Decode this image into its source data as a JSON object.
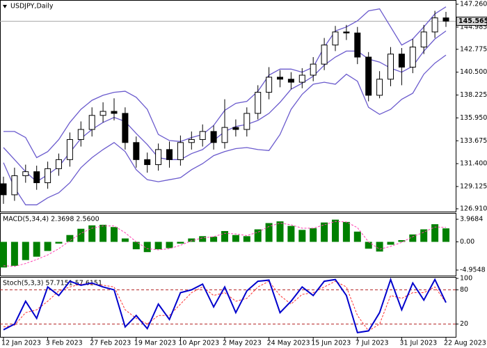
{
  "chart_data": [
    {
      "type": "candlestick",
      "title": "USDJPY,Daily",
      "open": [
        129.4,
        128.3,
        130.2,
        130.6,
        129.5,
        130.9,
        131.8,
        133.8,
        134.8,
        136.2,
        136.6,
        136.4,
        133.5,
        131.8,
        131.3,
        132.8,
        131.8,
        133.5,
        133.8,
        134.6,
        133.5,
        135.0,
        134.8,
        136.4,
        138.5,
        140.0,
        139.8,
        139.5,
        140.2,
        141.3,
        143.2,
        144.5,
        144.4,
        142.0,
        138.2,
        139.8,
        142.3,
        141.0,
        143.0,
        144.5,
        145.9
      ],
      "high": [
        130.1,
        131.0,
        131.3,
        131.2,
        131.6,
        132.4,
        134.5,
        135.6,
        137.0,
        137.5,
        137.9,
        137.0,
        134.1,
        132.5,
        133.4,
        133.6,
        134.2,
        134.6,
        135.3,
        135.2,
        137.8,
        135.8,
        137.0,
        139.2,
        141.0,
        140.7,
        140.5,
        140.9,
        142.0,
        143.9,
        145.1,
        145.2,
        145.0,
        142.5,
        140.6,
        143.0,
        142.9,
        143.8,
        145.2,
        146.6,
        146.5
      ],
      "low": [
        127.4,
        127.7,
        129.5,
        128.8,
        128.9,
        130.2,
        131.1,
        133.1,
        134.1,
        135.5,
        135.7,
        132.8,
        131.0,
        130.5,
        130.7,
        131.0,
        131.2,
        132.8,
        133.1,
        132.8,
        132.9,
        134.1,
        134.1,
        135.8,
        137.8,
        139.0,
        138.8,
        138.9,
        139.6,
        140.7,
        142.6,
        143.7,
        141.3,
        137.6,
        137.9,
        139.1,
        139.2,
        140.4,
        142.3,
        143.9,
        145.0
      ],
      "close": [
        128.3,
        130.2,
        130.6,
        129.5,
        130.9,
        131.8,
        133.8,
        134.8,
        136.2,
        136.6,
        136.4,
        133.5,
        131.8,
        131.3,
        132.8,
        131.8,
        133.5,
        133.8,
        134.6,
        133.5,
        135.0,
        134.8,
        136.4,
        138.5,
        140.0,
        139.8,
        139.5,
        140.2,
        141.3,
        143.2,
        144.5,
        144.4,
        142.0,
        138.2,
        139.8,
        142.3,
        141.0,
        143.0,
        144.5,
        145.9,
        145.57
      ],
      "color": "#000000",
      "bands": {
        "color": "#6a5acd",
        "upper": [
          134.6,
          134.6,
          134.0,
          132.0,
          132.6,
          133.8,
          135.5,
          136.8,
          137.7,
          138.2,
          138.5,
          138.6,
          138.0,
          136.8,
          134.3,
          133.7,
          133.6,
          134.0,
          134.3,
          135.2,
          136.7,
          137.4,
          137.6,
          138.6,
          140.2,
          140.8,
          140.8,
          140.5,
          141.0,
          143.0,
          144.6,
          145.0,
          145.6,
          146.6,
          146.8,
          145.0,
          143.2,
          143.8,
          145.0,
          146.3,
          147.0
        ],
        "middle": [
          133.0,
          131.8,
          130.6,
          129.6,
          130.3,
          131.1,
          132.5,
          133.9,
          134.8,
          135.5,
          136.0,
          135.6,
          134.4,
          133.3,
          132.0,
          131.8,
          131.8,
          132.4,
          132.8,
          133.7,
          134.6,
          135.1,
          135.3,
          135.7,
          136.4,
          137.5,
          138.8,
          139.4,
          140.1,
          141.2,
          142.0,
          142.6,
          142.6,
          141.8,
          141.5,
          140.9,
          140.5,
          141.1,
          142.6,
          143.8,
          144.6
        ],
        "lower": [
          131.5,
          129.0,
          127.3,
          127.3,
          128.0,
          128.5,
          129.5,
          131.0,
          132.0,
          132.8,
          133.5,
          132.6,
          130.8,
          129.8,
          129.6,
          129.8,
          130.0,
          130.8,
          131.4,
          132.2,
          132.6,
          132.9,
          133.0,
          132.8,
          132.7,
          134.3,
          136.8,
          138.3,
          139.3,
          139.5,
          139.3,
          140.3,
          139.6,
          137.0,
          136.3,
          136.8,
          137.8,
          138.4,
          140.3,
          141.4,
          142.2
        ]
      },
      "last_price": 145.565,
      "ylim": [
        126.7,
        147.54
      ],
      "yticks": [
        {
          "value": 147.26,
          "label": "147.260"
        },
        144.985,
        142.775,
        {
          "value": 140.5,
          "label": "140.500"
        },
        138.225,
        {
          "value": 135.95,
          "label": "135.950"
        },
        133.675,
        {
          "value": 131.4,
          "label": "131.400"
        },
        129.125,
        {
          "value": 126.91,
          "label": "126.910"
        }
      ]
    },
    {
      "type": "macd",
      "title": "MACD(5,34,4) 2.3698 2.5600",
      "color": "#008000",
      "values": [
        -4.5,
        -4.2,
        -3.2,
        -2.6,
        -1.6,
        -0.3,
        1.2,
        2.3,
        2.9,
        3.0,
        2.6,
        0.6,
        -1.3,
        -1.8,
        -1.3,
        -1.1,
        -0.3,
        0.6,
        1.0,
        0.9,
        1.9,
        1.2,
        1.0,
        2.2,
        3.3,
        3.6,
        2.8,
        2.1,
        2.4,
        3.4,
        3.9,
        3.5,
        1.8,
        -1.2,
        -1.7,
        -0.5,
        0.3,
        1.3,
        2.2,
        3.1,
        2.3698
      ],
      "signal": {
        "color": "#ff3fb0",
        "values": [
          -4.2,
          -4.3,
          -3.8,
          -3.1,
          -2.3,
          -1.2,
          0.2,
          1.5,
          2.4,
          2.8,
          2.8,
          1.6,
          0.0,
          -1.2,
          -1.4,
          -1.2,
          -0.6,
          0.2,
          0.7,
          0.9,
          1.5,
          1.4,
          1.1,
          1.7,
          2.7,
          3.3,
          3.0,
          2.4,
          2.4,
          3.0,
          3.6,
          3.5,
          2.5,
          0.0,
          -1.3,
          -0.8,
          -0.1,
          0.9,
          1.7,
          2.6,
          2.56
        ]
      },
      "ylim": [
        -5.93,
        4.83
      ],
      "yticks": [
        3.9684,
        {
          "value": 0,
          "label": "0.00"
        },
        -4.9548
      ]
    },
    {
      "type": "stochastic",
      "title": "Stoch(5,3,3) 57.7151 57.6151",
      "categories": [
        "12 Jan 2023",
        null,
        null,
        null,
        "3 Feb 2023",
        null,
        null,
        null,
        "27 Feb 2023",
        null,
        null,
        null,
        "19 Mar 2023",
        null,
        null,
        null,
        "10 Apr 2023",
        null,
        null,
        null,
        "2 May 2023",
        null,
        null,
        null,
        "24 May 2023",
        null,
        null,
        null,
        "15 Jun 2023",
        null,
        null,
        null,
        "7 Jul 2023",
        null,
        null,
        null,
        "31 Jul 2023",
        null,
        null,
        null,
        "22 Aug 2023"
      ],
      "main": {
        "color": "#0000cc",
        "values": [
          10,
          20,
          60,
          30,
          85,
          70,
          95,
          88,
          92,
          85,
          80,
          15,
          35,
          12,
          55,
          28,
          75,
          80,
          90,
          50,
          85,
          40,
          78,
          95,
          97,
          40,
          60,
          85,
          70,
          95,
          98,
          70,
          5,
          8,
          40,
          98,
          45,
          92,
          62,
          98,
          57.7151
        ]
      },
      "signal": {
        "color": "#ff3030",
        "values": [
          15,
          18,
          40,
          45,
          60,
          78,
          85,
          90,
          90,
          88,
          85,
          45,
          30,
          20,
          35,
          35,
          55,
          75,
          85,
          70,
          75,
          60,
          65,
          85,
          95,
          70,
          55,
          72,
          75,
          85,
          95,
          85,
          35,
          8,
          20,
          70,
          65,
          75,
          75,
          85,
          57.6151
        ]
      },
      "levels": [
        20,
        80
      ],
      "level_color": "#b22222",
      "ylim": [
        0,
        100
      ],
      "yticks": [
        20,
        80,
        100
      ]
    }
  ]
}
